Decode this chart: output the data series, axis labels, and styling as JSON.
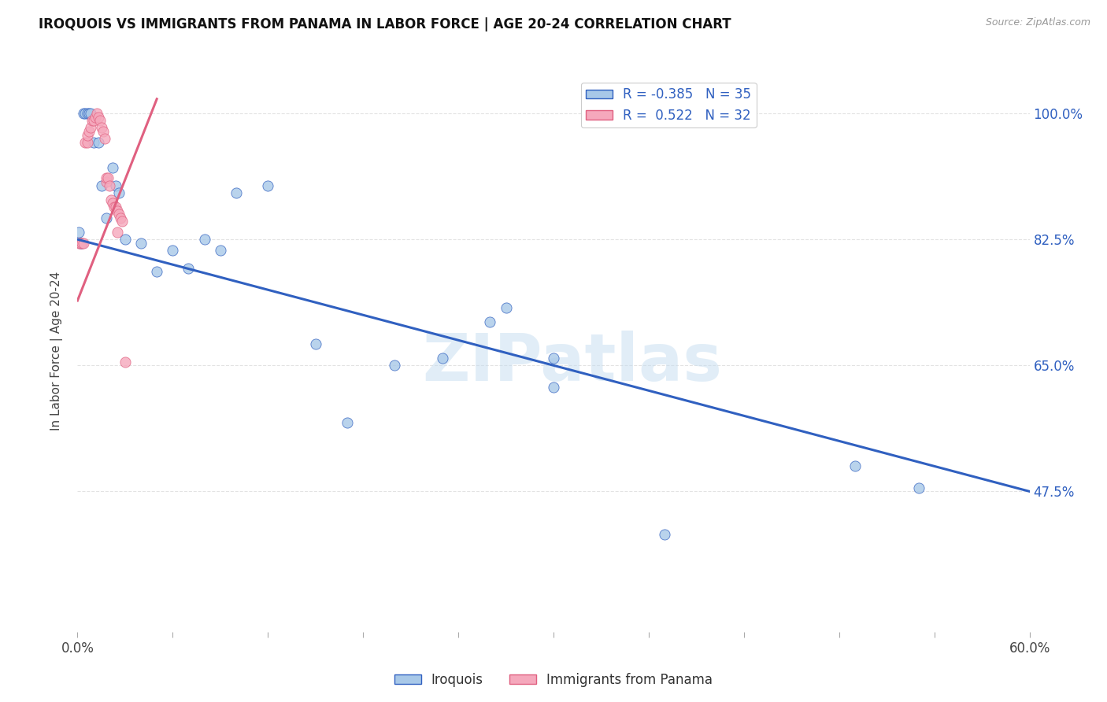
{
  "title": "IROQUOIS VS IMMIGRANTS FROM PANAMA IN LABOR FORCE | AGE 20-24 CORRELATION CHART",
  "source": "Source: ZipAtlas.com",
  "ylabel": "In Labor Force | Age 20-24",
  "yticks": [
    0.475,
    0.65,
    0.825,
    1.0
  ],
  "ytick_labels": [
    "47.5%",
    "65.0%",
    "82.5%",
    "100.0%"
  ],
  "xlim": [
    0.0,
    0.6
  ],
  "ylim": [
    0.28,
    1.06
  ],
  "watermark": "ZIPatlas",
  "legend_r_iroquois": "-0.385",
  "legend_n_iroquois": "35",
  "legend_r_panama": " 0.522",
  "legend_n_panama": "32",
  "iroquois_color": "#a8c8e8",
  "panama_color": "#f5a8bc",
  "iroquois_line_color": "#3060c0",
  "panama_line_color": "#e06080",
  "bg_color": "#ffffff",
  "grid_color": "#d8d8d8",
  "iroquois_x": [
    0.001,
    0.002,
    0.003,
    0.004,
    0.005,
    0.006,
    0.007,
    0.008,
    0.01,
    0.013,
    0.015,
    0.018,
    0.022,
    0.024,
    0.026,
    0.03,
    0.04,
    0.05,
    0.06,
    0.07,
    0.08,
    0.09,
    0.1,
    0.12,
    0.15,
    0.17,
    0.2,
    0.23,
    0.26,
    0.3,
    0.37,
    0.49,
    0.53,
    0.3,
    0.27
  ],
  "iroquois_y": [
    0.835,
    0.82,
    0.82,
    1.0,
    1.0,
    1.0,
    1.0,
    1.0,
    0.96,
    0.96,
    0.9,
    0.855,
    0.925,
    0.9,
    0.89,
    0.825,
    0.82,
    0.78,
    0.81,
    0.785,
    0.825,
    0.81,
    0.89,
    0.9,
    0.68,
    0.57,
    0.65,
    0.66,
    0.71,
    0.66,
    0.415,
    0.51,
    0.48,
    0.62,
    0.73
  ],
  "panama_x": [
    0.001,
    0.002,
    0.003,
    0.004,
    0.005,
    0.006,
    0.006,
    0.007,
    0.008,
    0.009,
    0.01,
    0.011,
    0.012,
    0.013,
    0.014,
    0.015,
    0.016,
    0.017,
    0.018,
    0.018,
    0.019,
    0.02,
    0.021,
    0.022,
    0.023,
    0.024,
    0.025,
    0.025,
    0.026,
    0.027,
    0.028,
    0.03
  ],
  "panama_y": [
    0.82,
    0.82,
    0.82,
    0.82,
    0.96,
    0.96,
    0.97,
    0.975,
    0.98,
    0.99,
    0.99,
    0.995,
    1.0,
    0.995,
    0.99,
    0.98,
    0.975,
    0.965,
    0.905,
    0.91,
    0.91,
    0.9,
    0.88,
    0.875,
    0.87,
    0.87,
    0.865,
    0.835,
    0.86,
    0.855,
    0.85,
    0.655
  ],
  "iroquois_trendline_x": [
    0.0,
    0.6
  ],
  "iroquois_trendline_y": [
    0.825,
    0.475
  ],
  "panama_trendline_x0": 0.0,
  "panama_trendline_x1": 0.05,
  "panama_trendline_y0": 0.74,
  "panama_trendline_y1": 1.02
}
